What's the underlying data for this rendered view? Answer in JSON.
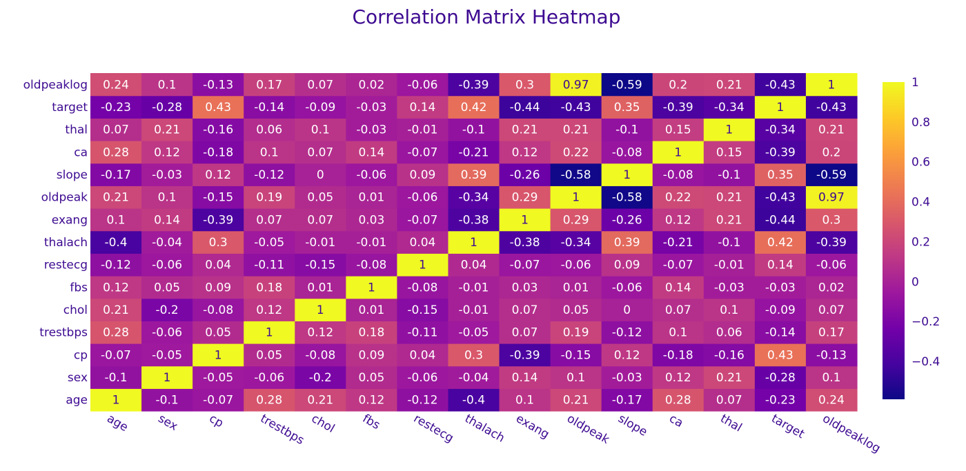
{
  "chart_data": {
    "type": "heatmap",
    "title": "Correlation Matrix Heatmap",
    "xlabel": "",
    "ylabel": "",
    "x_categories": [
      "age",
      "sex",
      "cp",
      "trestbps",
      "chol",
      "fbs",
      "restecg",
      "thalach",
      "exang",
      "oldpeak",
      "slope",
      "ca",
      "thal",
      "target",
      "oldpeaklog"
    ],
    "y_categories": [
      "age",
      "sex",
      "cp",
      "trestbps",
      "chol",
      "fbs",
      "restecg",
      "thalach",
      "exang",
      "oldpeak",
      "slope",
      "ca",
      "thal",
      "target",
      "oldpeaklog"
    ],
    "values": [
      [
        1,
        -0.1,
        -0.07,
        0.28,
        0.21,
        0.12,
        -0.12,
        -0.4,
        0.1,
        0.21,
        -0.17,
        0.28,
        0.07,
        -0.23,
        0.24
      ],
      [
        -0.1,
        1,
        -0.05,
        -0.06,
        -0.2,
        0.05,
        -0.06,
        -0.04,
        0.14,
        0.1,
        -0.03,
        0.12,
        0.21,
        -0.28,
        0.1
      ],
      [
        -0.07,
        -0.05,
        1,
        0.05,
        -0.08,
        0.09,
        0.04,
        0.3,
        -0.39,
        -0.15,
        0.12,
        -0.18,
        -0.16,
        0.43,
        -0.13
      ],
      [
        0.28,
        -0.06,
        0.05,
        1,
        0.12,
        0.18,
        -0.11,
        -0.05,
        0.07,
        0.19,
        -0.12,
        0.1,
        0.06,
        -0.14,
        0.17
      ],
      [
        0.21,
        -0.2,
        -0.08,
        0.12,
        1,
        0.01,
        -0.15,
        -0.01,
        0.07,
        0.05,
        0,
        0.07,
        0.1,
        -0.09,
        0.07
      ],
      [
        0.12,
        0.05,
        0.09,
        0.18,
        0.01,
        1,
        -0.08,
        -0.01,
        0.03,
        0.01,
        -0.06,
        0.14,
        -0.03,
        -0.03,
        0.02
      ],
      [
        -0.12,
        -0.06,
        0.04,
        -0.11,
        -0.15,
        -0.08,
        1,
        0.04,
        -0.07,
        -0.06,
        0.09,
        -0.07,
        -0.01,
        0.14,
        -0.06
      ],
      [
        -0.4,
        -0.04,
        0.3,
        -0.05,
        -0.01,
        -0.01,
        0.04,
        1,
        -0.38,
        -0.34,
        0.39,
        -0.21,
        -0.1,
        0.42,
        -0.39
      ],
      [
        0.1,
        0.14,
        -0.39,
        0.07,
        0.07,
        0.03,
        -0.07,
        -0.38,
        1,
        0.29,
        -0.26,
        0.12,
        0.21,
        -0.44,
        0.3
      ],
      [
        0.21,
        0.1,
        -0.15,
        0.19,
        0.05,
        0.01,
        -0.06,
        -0.34,
        0.29,
        1,
        -0.58,
        0.22,
        0.21,
        -0.43,
        0.97
      ],
      [
        -0.17,
        -0.03,
        0.12,
        -0.12,
        0,
        -0.06,
        0.09,
        0.39,
        -0.26,
        -0.58,
        1,
        -0.08,
        -0.1,
        0.35,
        -0.59
      ],
      [
        0.28,
        0.12,
        -0.18,
        0.1,
        0.07,
        0.14,
        -0.07,
        -0.21,
        0.12,
        0.22,
        -0.08,
        1,
        0.15,
        -0.39,
        0.2
      ],
      [
        0.07,
        0.21,
        -0.16,
        0.06,
        0.1,
        -0.03,
        -0.01,
        -0.1,
        0.21,
        0.21,
        -0.1,
        0.15,
        1,
        -0.34,
        0.21
      ],
      [
        -0.23,
        -0.28,
        0.43,
        -0.14,
        -0.09,
        -0.03,
        0.14,
        0.42,
        -0.44,
        -0.43,
        0.35,
        -0.39,
        -0.34,
        1,
        -0.43
      ],
      [
        0.24,
        0.1,
        -0.13,
        0.17,
        0.07,
        0.02,
        -0.06,
        -0.39,
        0.3,
        0.97,
        -0.59,
        0.2,
        0.21,
        -0.43,
        1
      ]
    ],
    "zmin": -0.59,
    "zmax": 1,
    "colorscale": [
      "#0d0887",
      "#46039f",
      "#7201a8",
      "#9c179e",
      "#bd3786",
      "#d8576b",
      "#ed7953",
      "#fb9f3a",
      "#fdca26",
      "#f0f921"
    ],
    "colorbar": {
      "ticks": [
        1,
        0.8,
        0.6,
        0.4,
        0.2,
        0,
        -0.2,
        -0.4
      ],
      "tick_labels": [
        "1",
        "0.8",
        "0.6",
        "0.4",
        "0.2",
        "0",
        "−0.2",
        "−0.4"
      ]
    },
    "colors": {
      "title": "#3d0a91",
      "tick_text": "#3d0a91",
      "cell_text_dark_bg": "#ffffff",
      "cell_text_light_bg": "#3d0a91"
    }
  }
}
